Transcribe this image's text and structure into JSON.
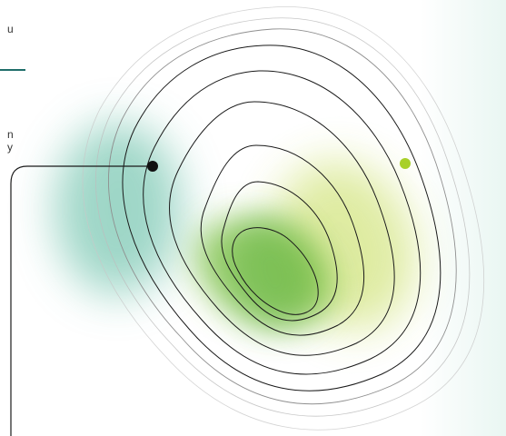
{
  "colors": {
    "teal": "#4fb59a",
    "green": "#7ac043",
    "lime": "#b8d430",
    "line": "#1a1a1a",
    "rule": "#1f6e6a",
    "fade": "#e9f6f2"
  },
  "fragments": {
    "line1": "u",
    "line2": "n",
    "line3": "y"
  },
  "markers": {
    "dark": "dark-dot",
    "light": "lime-dot"
  }
}
